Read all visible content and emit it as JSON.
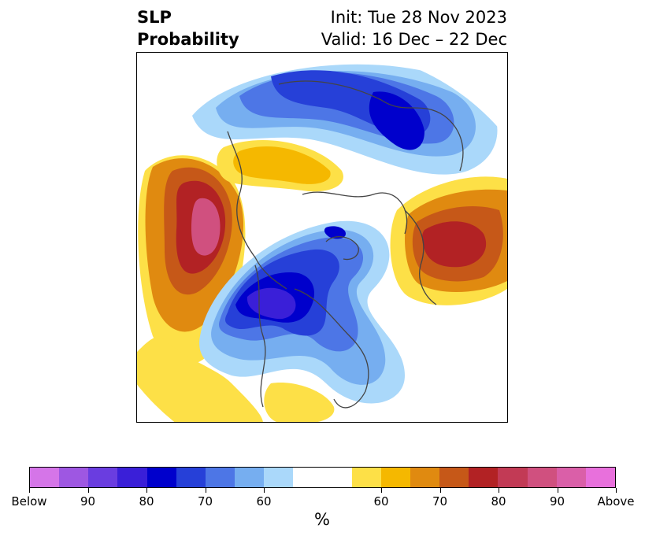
{
  "title": {
    "left_line1": "SLP",
    "left_line2": "Probability",
    "right_line1": "Init: Tue 28 Nov 2023",
    "right_line2": "Valid: 16 Dec – 22 Dec"
  },
  "map": {
    "projection": "north-polar-stereographic"
  },
  "colorbar": {
    "unit": "%",
    "below_colors": [
      "#d575e8",
      "#9e57e2",
      "#6a3de0",
      "#3a1fd8",
      "#0000cc",
      "#2640d8",
      "#4d76e6",
      "#76aef0",
      "#aad8fa"
    ],
    "neutral_color": "#ffffff",
    "above_colors": [
      "#fde047",
      "#f5b800",
      "#e08a10",
      "#c65818",
      "#b22224",
      "#c23a55",
      "#d0507f",
      "#da5fa8",
      "#e870dc"
    ],
    "tick_labels": [
      "Below",
      "90",
      "80",
      "70",
      "60",
      "60",
      "70",
      "80",
      "90",
      "Above"
    ]
  }
}
